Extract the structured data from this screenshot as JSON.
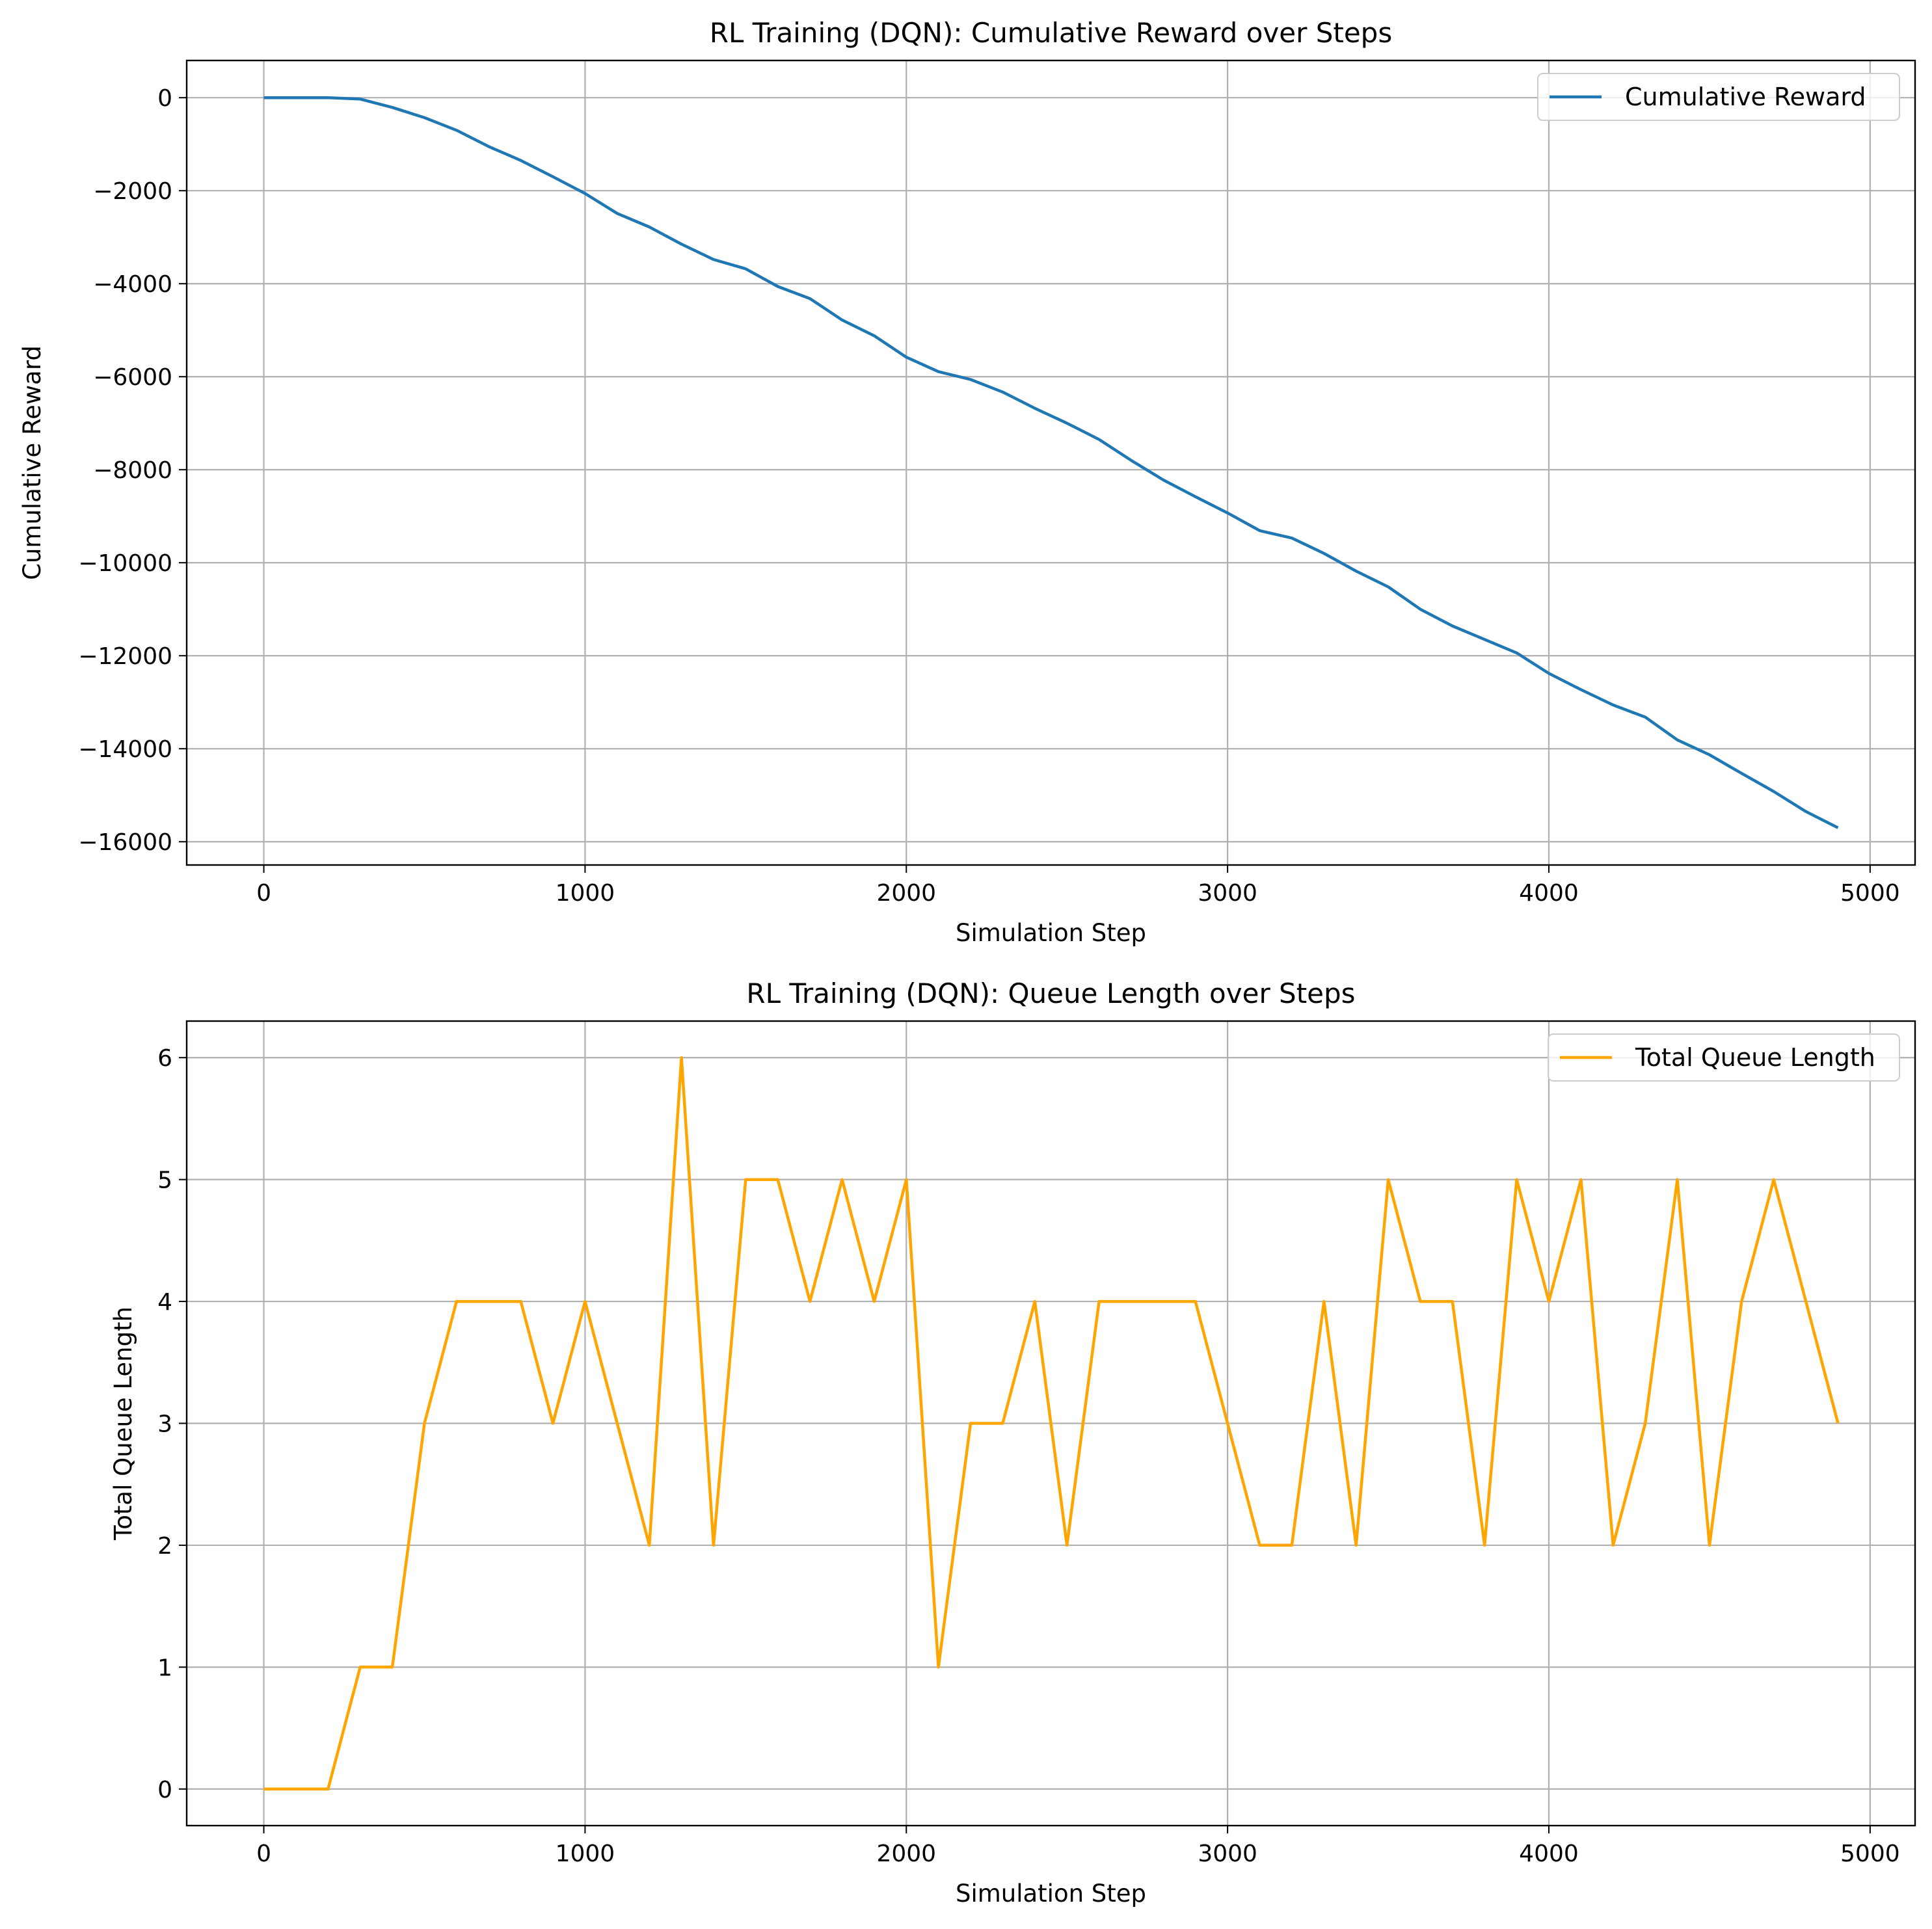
{
  "chart_data": [
    {
      "type": "line",
      "title": "RL Training (DQN): Cumulative Reward over Steps",
      "xlabel": "Simulation Step",
      "ylabel": "Cumulative Reward",
      "xlim": [
        -240,
        5140
      ],
      "ylim": [
        -16500,
        800
      ],
      "xticks": [
        0,
        1000,
        2000,
        3000,
        4000,
        5000
      ],
      "xtick_labels": [
        "0",
        "1000",
        "2000",
        "3000",
        "4000",
        "5000"
      ],
      "yticks": [
        0,
        -2000,
        -4000,
        -6000,
        -8000,
        -10000,
        -12000,
        -14000,
        -16000
      ],
      "ytick_labels": [
        "0",
        "−2000",
        "−4000",
        "−6000",
        "−8000",
        "−10000",
        "−12000",
        "−14000",
        "−16000"
      ],
      "grid": true,
      "legend_position": "top-right",
      "series": [
        {
          "name": "Cumulative Reward",
          "color": "#1f77b4",
          "x": [
            0,
            100,
            200,
            300,
            400,
            500,
            600,
            700,
            800,
            900,
            1000,
            1100,
            1200,
            1300,
            1400,
            1500,
            1600,
            1700,
            1800,
            1900,
            2000,
            2100,
            2200,
            2300,
            2400,
            2500,
            2600,
            2700,
            2800,
            2900,
            3000,
            3100,
            3200,
            3300,
            3400,
            3500,
            3600,
            3700,
            3800,
            3900,
            4000,
            4100,
            4200,
            4300,
            4400,
            4500,
            4600,
            4700,
            4800,
            4900
          ],
          "y": [
            0,
            0,
            0,
            -30,
            -210,
            -430,
            -700,
            -1050,
            -1350,
            -1700,
            -2060,
            -2490,
            -2780,
            -3150,
            -3480,
            -3680,
            -4060,
            -4320,
            -4780,
            -5120,
            -5580,
            -5890,
            -6060,
            -6330,
            -6680,
            -7000,
            -7350,
            -7800,
            -8220,
            -8580,
            -8930,
            -9310,
            -9470,
            -9800,
            -10180,
            -10520,
            -11000,
            -11360,
            -11650,
            -11940,
            -12380,
            -12730,
            -13060,
            -13320,
            -13810,
            -14130,
            -14530,
            -14920,
            -15350,
            -15700
          ]
        }
      ]
    },
    {
      "type": "line",
      "title": "RL Training (DQN): Queue Length over Steps",
      "xlabel": "Simulation Step",
      "ylabel": "Total Queue Length",
      "xlim": [
        -240,
        5140
      ],
      "ylim": [
        -0.3,
        6.3
      ],
      "xticks": [
        0,
        1000,
        2000,
        3000,
        4000,
        5000
      ],
      "xtick_labels": [
        "0",
        "1000",
        "2000",
        "3000",
        "4000",
        "5000"
      ],
      "yticks": [
        0,
        1,
        2,
        3,
        4,
        5,
        6
      ],
      "ytick_labels": [
        "0",
        "1",
        "2",
        "3",
        "4",
        "5",
        "6"
      ],
      "grid": true,
      "legend_position": "top-right",
      "series": [
        {
          "name": "Total Queue Length",
          "color": "#ffa500",
          "x": [
            0,
            100,
            200,
            300,
            400,
            500,
            600,
            700,
            800,
            900,
            1000,
            1100,
            1200,
            1300,
            1400,
            1500,
            1600,
            1700,
            1800,
            1900,
            2000,
            2100,
            2200,
            2300,
            2400,
            2500,
            2600,
            2700,
            2800,
            2900,
            3000,
            3100,
            3200,
            3300,
            3400,
            3500,
            3600,
            3700,
            3800,
            3900,
            4000,
            4100,
            4200,
            4300,
            4400,
            4500,
            4600,
            4700,
            4800,
            4900
          ],
          "y": [
            0,
            0,
            0,
            1,
            1,
            3,
            4,
            4,
            4,
            3,
            4,
            3,
            2,
            6,
            2,
            5,
            5,
            4,
            5,
            4,
            5,
            1,
            3,
            3,
            4,
            2,
            4,
            4,
            4,
            4,
            3,
            2,
            2,
            4,
            2,
            5,
            4,
            4,
            2,
            5,
            4,
            5,
            2,
            3,
            5,
            2,
            4,
            5,
            4,
            3
          ]
        }
      ]
    }
  ]
}
